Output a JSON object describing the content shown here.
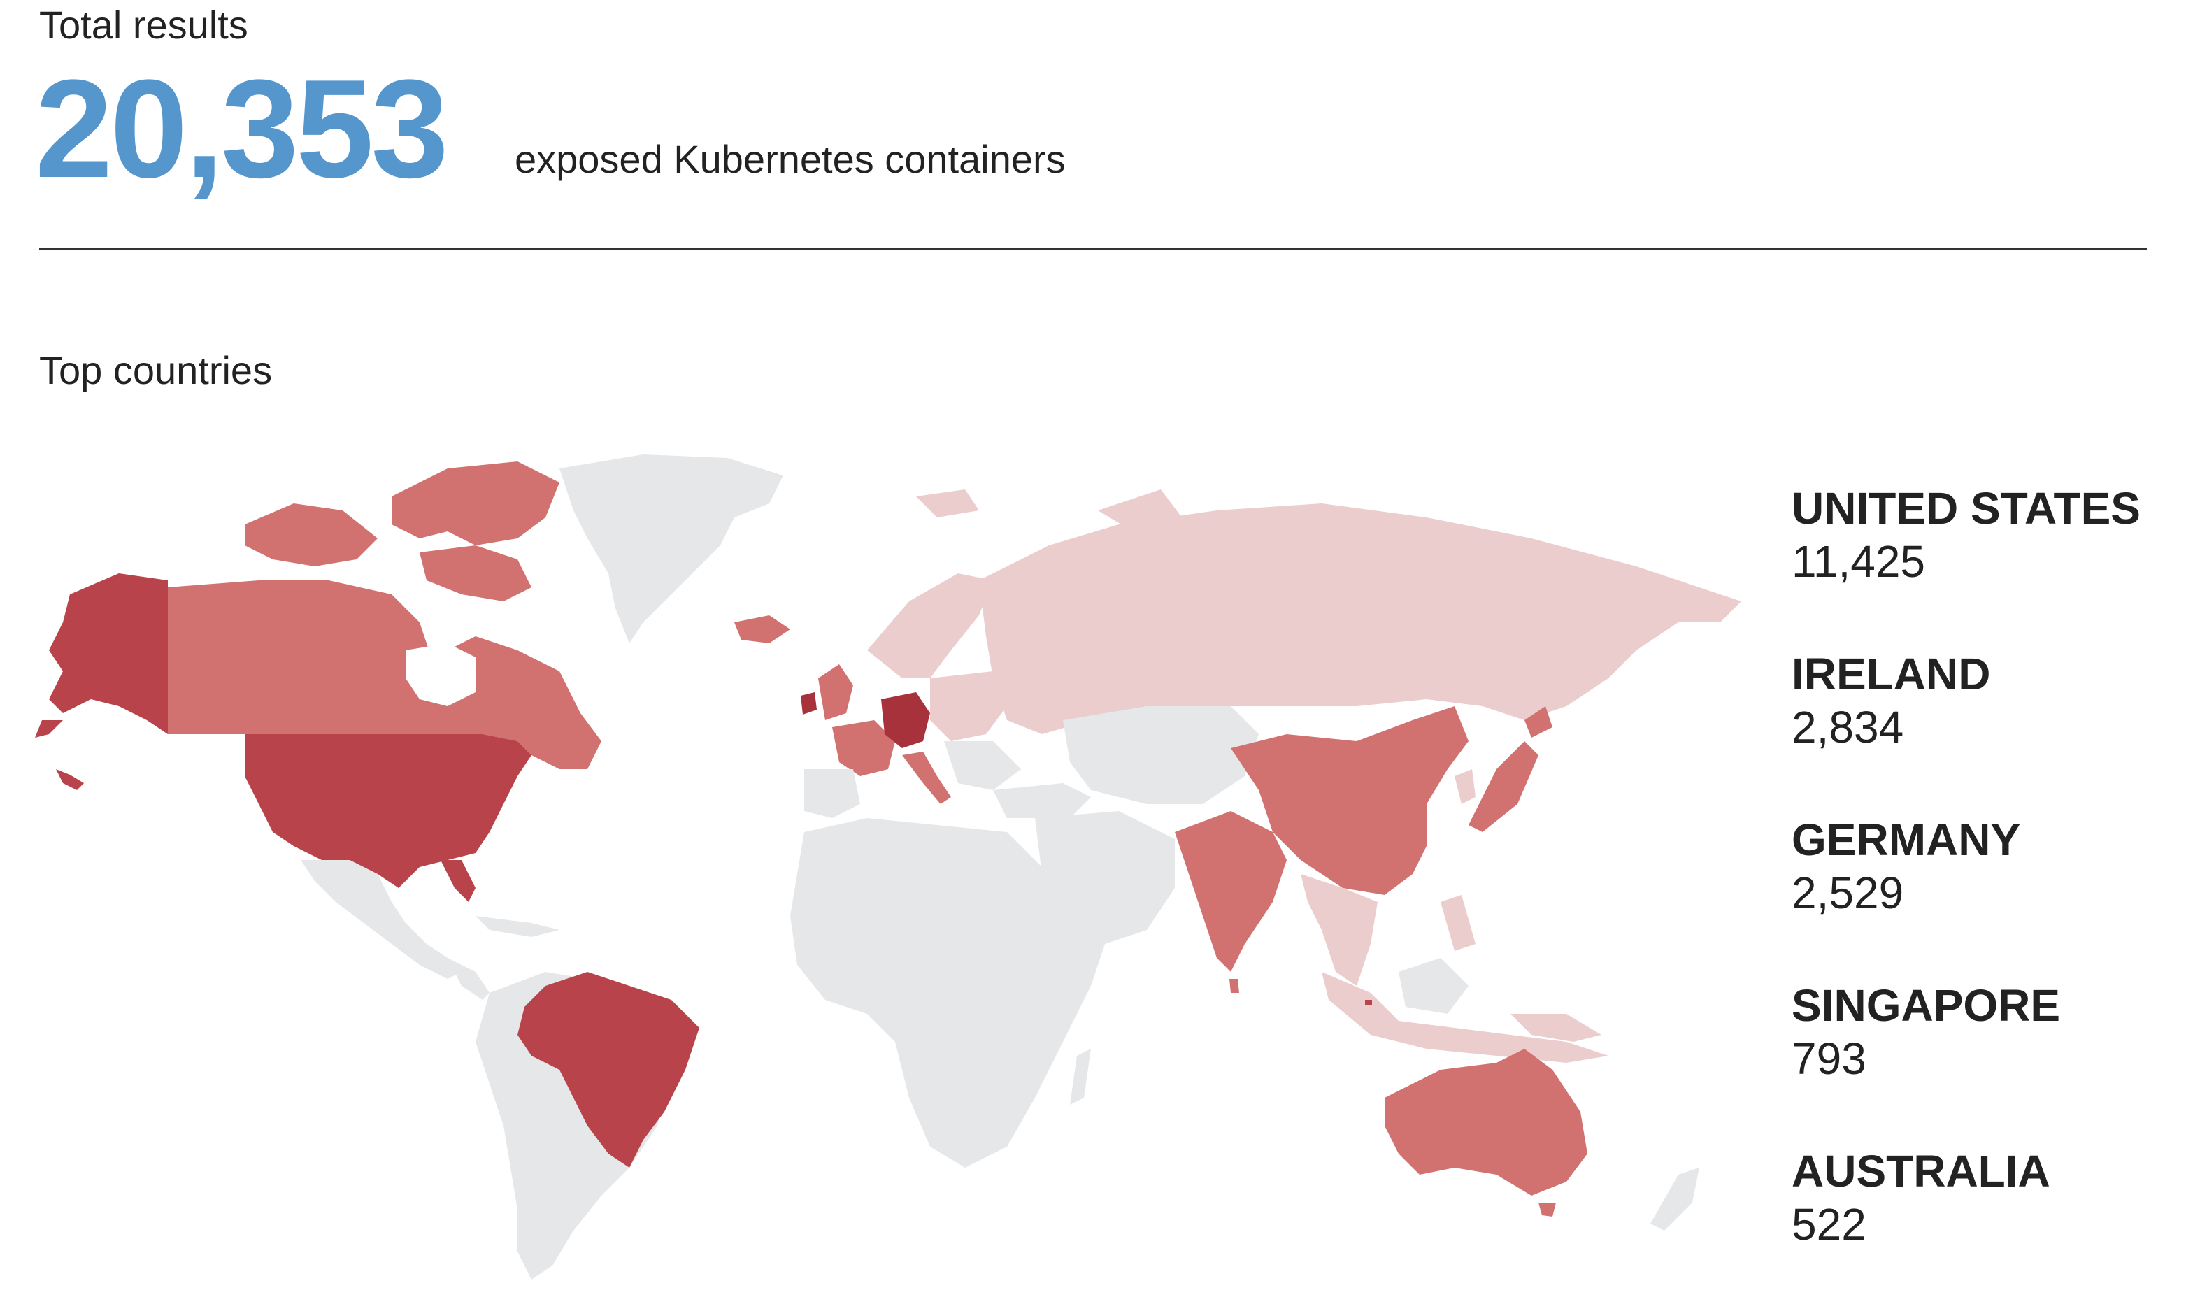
{
  "header": {
    "total_label": "Total results",
    "total_value": "20,353",
    "total_desc": "exposed Kubernetes containers"
  },
  "section": {
    "title": "Top countries"
  },
  "top_countries": [
    {
      "name": "UNITED STATES",
      "count": "11,425"
    },
    {
      "name": "IRELAND",
      "count": "2,834"
    },
    {
      "name": "GERMANY",
      "count": "2,529"
    },
    {
      "name": "SINGAPORE",
      "count": "793"
    },
    {
      "name": "AUSTRALIA",
      "count": "522"
    }
  ],
  "colors": {
    "accent_number": "#5597cd",
    "no_data": "#e6e7e9",
    "low": "#ebcdce",
    "mid": "#d17170",
    "high": "#b9434b",
    "highest": "#a8323c"
  }
}
